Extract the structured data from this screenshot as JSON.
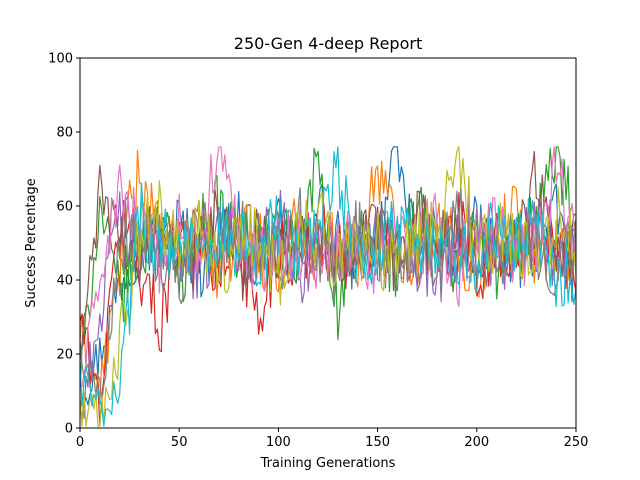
{
  "chart_data": {
    "type": "line",
    "title": "250-Gen 4-deep Report",
    "xlabel": "Training Generations",
    "ylabel": "Success Percentage",
    "xlim": [
      0,
      250
    ],
    "ylim": [
      0,
      100
    ],
    "xticks": [
      "0",
      "50",
      "100",
      "150",
      "200",
      "250"
    ],
    "yticks": [
      "0",
      "20",
      "40",
      "60",
      "80",
      "100"
    ],
    "grid": false,
    "legend": "none",
    "colors": [
      "#1f77b4",
      "#ff7f0e",
      "#2ca02c",
      "#d62728",
      "#9467bd",
      "#8c564b",
      "#e377c2",
      "#7f7f7f",
      "#bcbd22",
      "#17becf"
    ],
    "series_description": "10 noisy runs over 250 generations; starting near 0-30%, rising to oscillate between ~30% and ~76% after generation ~25, centered near 50%",
    "series": [
      {
        "color": "#1f77b4",
        "x": [
          0,
          10,
          20,
          30,
          40,
          50,
          60,
          70,
          80,
          90,
          100,
          110,
          120,
          130,
          140,
          150,
          160,
          170,
          180,
          190,
          200,
          210,
          220,
          230,
          240,
          250
        ],
        "values": [
          8,
          20,
          40,
          52,
          48,
          55,
          44,
          50,
          58,
          46,
          52,
          44,
          60,
          49,
          46,
          54,
          72,
          48,
          52,
          44,
          56,
          50,
          46,
          52,
          58,
          40
        ]
      },
      {
        "color": "#ff7f0e",
        "x": [
          0,
          10,
          20,
          30,
          40,
          50,
          60,
          70,
          80,
          90,
          100,
          110,
          120,
          130,
          140,
          150,
          160,
          170,
          180,
          190,
          200,
          210,
          220,
          230,
          240,
          250
        ],
        "values": [
          26,
          10,
          44,
          70,
          50,
          46,
          58,
          42,
          54,
          50,
          40,
          56,
          48,
          52,
          44,
          72,
          50,
          46,
          54,
          48,
          42,
          52,
          58,
          44,
          50,
          46
        ]
      },
      {
        "color": "#2ca02c",
        "x": [
          0,
          10,
          20,
          30,
          40,
          50,
          60,
          70,
          80,
          90,
          100,
          110,
          120,
          130,
          140,
          150,
          160,
          170,
          180,
          190,
          200,
          210,
          220,
          230,
          240,
          250
        ],
        "values": [
          12,
          60,
          36,
          48,
          56,
          42,
          52,
          60,
          46,
          50,
          54,
          44,
          74,
          30,
          52,
          48,
          44,
          58,
          50,
          46,
          52,
          44,
          50,
          56,
          74,
          52
        ]
      },
      {
        "color": "#d62728",
        "x": [
          0,
          10,
          20,
          30,
          40,
          50,
          60,
          70,
          80,
          90,
          100,
          110,
          120,
          130,
          140,
          150,
          160,
          170,
          180,
          190,
          200,
          210,
          220,
          230,
          240,
          250
        ],
        "values": [
          30,
          6,
          58,
          44,
          28,
          54,
          48,
          42,
          52,
          28,
          50,
          46,
          54,
          48,
          42,
          52,
          46,
          50,
          48,
          56,
          42,
          50,
          46,
          54,
          48,
          44
        ]
      },
      {
        "color": "#9467bd",
        "x": [
          0,
          10,
          20,
          30,
          40,
          50,
          60,
          70,
          80,
          90,
          100,
          110,
          120,
          130,
          140,
          150,
          160,
          170,
          180,
          190,
          200,
          210,
          220,
          230,
          240,
          250
        ],
        "values": [
          4,
          30,
          60,
          46,
          52,
          48,
          42,
          54,
          50,
          46,
          56,
          42,
          50,
          44,
          52,
          48,
          54,
          46,
          42,
          50,
          56,
          44,
          48,
          52,
          46,
          54
        ]
      },
      {
        "color": "#8c564b",
        "x": [
          0,
          10,
          20,
          30,
          40,
          50,
          60,
          70,
          80,
          90,
          100,
          110,
          120,
          130,
          140,
          150,
          160,
          170,
          180,
          190,
          200,
          210,
          220,
          230,
          240,
          250
        ],
        "values": [
          18,
          64,
          52,
          44,
          56,
          50,
          46,
          60,
          42,
          52,
          48,
          56,
          44,
          50,
          46,
          54,
          42,
          58,
          48,
          52,
          46,
          50,
          54,
          68,
          44,
          50
        ]
      },
      {
        "color": "#e377c2",
        "x": [
          0,
          10,
          20,
          30,
          40,
          50,
          60,
          70,
          80,
          90,
          100,
          110,
          120,
          130,
          140,
          150,
          160,
          170,
          180,
          190,
          200,
          210,
          220,
          230,
          240,
          250
        ],
        "values": [
          10,
          40,
          66,
          52,
          46,
          54,
          48,
          76,
          50,
          44,
          52,
          48,
          46,
          54,
          50,
          44,
          52,
          48,
          56,
          42,
          50,
          54,
          46,
          52,
          70,
          48
        ]
      },
      {
        "color": "#7f7f7f",
        "x": [
          0,
          10,
          20,
          30,
          40,
          50,
          60,
          70,
          80,
          90,
          100,
          110,
          120,
          130,
          140,
          150,
          160,
          170,
          180,
          190,
          200,
          210,
          220,
          230,
          240,
          250
        ],
        "values": [
          22,
          8,
          50,
          56,
          48,
          42,
          54,
          46,
          52,
          50,
          44,
          56,
          48,
          42,
          54,
          50,
          46,
          52,
          44,
          58,
          48,
          46,
          52,
          50,
          44,
          52
        ]
      },
      {
        "color": "#bcbd22",
        "x": [
          0,
          10,
          20,
          30,
          40,
          50,
          60,
          70,
          80,
          90,
          100,
          110,
          120,
          130,
          140,
          150,
          160,
          170,
          180,
          190,
          200,
          210,
          220,
          230,
          240,
          250
        ],
        "values": [
          6,
          2,
          22,
          50,
          58,
          46,
          52,
          44,
          48,
          54,
          42,
          50,
          56,
          46,
          52,
          48,
          44,
          50,
          54,
          76,
          46,
          52,
          48,
          44,
          56,
          50
        ]
      },
      {
        "color": "#17becf",
        "x": [
          0,
          10,
          20,
          30,
          40,
          50,
          60,
          70,
          80,
          90,
          100,
          110,
          120,
          130,
          140,
          150,
          160,
          170,
          180,
          190,
          200,
          210,
          220,
          230,
          240,
          250
        ],
        "values": [
          14,
          4,
          12,
          58,
          48,
          52,
          44,
          54,
          50,
          46,
          56,
          48,
          52,
          68,
          44,
          50,
          54,
          46,
          52,
          48,
          44,
          56,
          50,
          54,
          42,
          40
        ]
      }
    ]
  }
}
